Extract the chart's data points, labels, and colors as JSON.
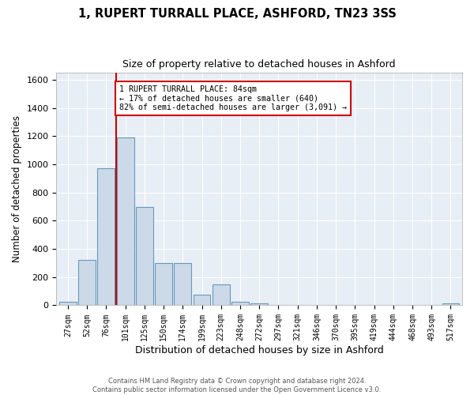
{
  "title": "1, RUPERT TURRALL PLACE, ASHFORD, TN23 3SS",
  "subtitle": "Size of property relative to detached houses in Ashford",
  "xlabel": "Distribution of detached houses by size in Ashford",
  "ylabel": "Number of detached properties",
  "bar_labels": [
    "27sqm",
    "52sqm",
    "76sqm",
    "101sqm",
    "125sqm",
    "150sqm",
    "174sqm",
    "199sqm",
    "223sqm",
    "248sqm",
    "272sqm",
    "297sqm",
    "321sqm",
    "346sqm",
    "370sqm",
    "395sqm",
    "419sqm",
    "444sqm",
    "468sqm",
    "493sqm",
    "517sqm"
  ],
  "bar_values": [
    25,
    320,
    970,
    1190,
    700,
    300,
    300,
    75,
    150,
    25,
    15,
    0,
    0,
    0,
    0,
    0,
    0,
    0,
    0,
    0,
    15
  ],
  "bar_color": "#ccd9e8",
  "bar_edge_color": "#6699bb",
  "vline_x_index": 2.5,
  "vline_color": "#cc0000",
  "annotation_title": "1 RUPERT TURRALL PLACE: 84sqm",
  "annotation_line1": "← 17% of detached houses are smaller (640)",
  "annotation_line2": "82% of semi-detached houses are larger (3,091) →",
  "annotation_box_color": "#ffffff",
  "annotation_box_edge": "#cc0000",
  "ylim": [
    0,
    1650
  ],
  "yticks": [
    0,
    200,
    400,
    600,
    800,
    1000,
    1200,
    1400,
    1600
  ],
  "footer1": "Contains HM Land Registry data © Crown copyright and database right 2024.",
  "footer2": "Contains public sector information licensed under the Open Government Licence v3.0.",
  "background_color": "#ffffff",
  "plot_bg_color": "#e8eef5",
  "grid_color": "#ffffff"
}
